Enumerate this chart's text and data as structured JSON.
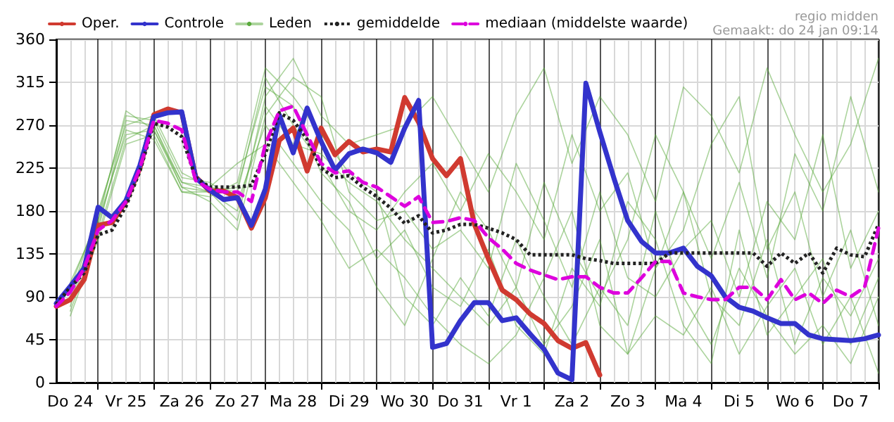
{
  "chart_data": {
    "type": "line",
    "annotations": [
      "regio midden",
      "Gemaakt: do 24 jan 09:14"
    ],
    "categories": [
      null,
      "Do 24",
      null,
      null,
      null,
      "Vr 25",
      null,
      null,
      null,
      "Za 26",
      null,
      null,
      null,
      "Zo 27",
      null,
      null,
      null,
      "Ma 28",
      null,
      null,
      null,
      "Di 29",
      null,
      null,
      null,
      "Wo 30",
      null,
      null,
      null,
      "Do 31",
      null,
      null,
      null,
      "Vr 1",
      null,
      null,
      null,
      "Za 2",
      null,
      null,
      null,
      "Zo 3",
      null,
      null,
      null,
      "Ma 4",
      null,
      null,
      null,
      "Di 5",
      null,
      null,
      null,
      "Wo 6",
      null,
      null,
      null,
      "Do 7",
      null,
      null
    ],
    "ylim": [
      0,
      360
    ],
    "yticks": [
      0,
      45,
      90,
      135,
      180,
      225,
      270,
      315,
      360
    ],
    "grid": true,
    "legend": "top left",
    "marker": "none",
    "series": [
      {
        "name": "Oper.",
        "color": "#d03a30",
        "line_style": "solid",
        "values": [
          80,
          87,
          108,
          165,
          168,
          190,
          225,
          281,
          287,
          283,
          216,
          201,
          201,
          194,
          162,
          194,
          254,
          267,
          222,
          267,
          239,
          253,
          242,
          245,
          242,
          299,
          273,
          235,
          217,
          235,
          166,
          130,
          97,
          87,
          72,
          62,
          44,
          36,
          42,
          8,
          null,
          null,
          null,
          null,
          null,
          null,
          null,
          null,
          null,
          null,
          null,
          null,
          null,
          null,
          null,
          null,
          null,
          null,
          null,
          null
        ]
      },
      {
        "name": "Controle",
        "color": "#3333cc",
        "line_style": "solid",
        "values": [
          83,
          101,
          120,
          184,
          173,
          191,
          228,
          279,
          283,
          284,
          215,
          202,
          192,
          194,
          165,
          203,
          281,
          241,
          288,
          253,
          223,
          240,
          245,
          241,
          231,
          267,
          296,
          37,
          41,
          65,
          84,
          84,
          65,
          68,
          51,
          35,
          10,
          3,
          314,
          263,
          215,
          170,
          148,
          136,
          136,
          141,
          122,
          112,
          90,
          79,
          75,
          68,
          62,
          62,
          50,
          46,
          45,
          44,
          46,
          50
        ]
      },
      {
        "name": "Leden",
        "color": "#5aaa3c",
        "line_style": "solid",
        "values": [
          null,
          85,
          null,
          170,
          null,
          260,
          null,
          265,
          null,
          205,
          null,
          200,
          null,
          180,
          null,
          290,
          null,
          250,
          null,
          240,
          null,
          210,
          null,
          190,
          null,
          150,
          null,
          120,
          null,
          90,
          null,
          60,
          null,
          100,
          null,
          40,
          null,
          80,
          null,
          150,
          null,
          30,
          null,
          120,
          null,
          200,
          null,
          90,
          null,
          60,
          null,
          150,
          null,
          40,
          null,
          110,
          null,
          70,
          null,
          130
        ]
      },
      {
        "color": "#5aaa3c",
        "line_style": "solid",
        "values": [
          null,
          95,
          null,
          160,
          null,
          275,
          null,
          270,
          null,
          210,
          null,
          205,
          null,
          200,
          null,
          320,
          null,
          270,
          null,
          230,
          null,
          180,
          null,
          160,
          null,
          200,
          null,
          230,
          null,
          180,
          null,
          240,
          null,
          200,
          null,
          150,
          null,
          260,
          null,
          180,
          null,
          220,
          null,
          120,
          null,
          160,
          null,
          250,
          null,
          300,
          null,
          140,
          null,
          200,
          null,
          90,
          null,
          160,
          null,
          60
        ]
      },
      {
        "color": "#5aaa3c",
        "line_style": "solid",
        "values": [
          null,
          70,
          null,
          150,
          null,
          250,
          null,
          260,
          null,
          200,
          null,
          195,
          null,
          210,
          null,
          330,
          null,
          300,
          null,
          260,
          null,
          220,
          null,
          200,
          null,
          90,
          null,
          60,
          null,
          110,
          null,
          70,
          null,
          150,
          null,
          90,
          null,
          40,
          null,
          100,
          null,
          60,
          null,
          180,
          null,
          90,
          null,
          40,
          null,
          120,
          null,
          70,
          null,
          30,
          null,
          60,
          null,
          20,
          null,
          90
        ]
      },
      {
        "color": "#5aaa3c",
        "line_style": "solid",
        "values": [
          null,
          100,
          null,
          175,
          null,
          280,
          null,
          275,
          null,
          215,
          null,
          210,
          null,
          190,
          null,
          270,
          null,
          230,
          null,
          190,
          null,
          160,
          null,
          100,
          null,
          60,
          null,
          130,
          null,
          200,
          null,
          160,
          null,
          100,
          null,
          210,
          null,
          140,
          null,
          90,
          null,
          150,
          null,
          260,
          null,
          200,
          null,
          130,
          null,
          210,
          null,
          110,
          null,
          240,
          null,
          180,
          null,
          300,
          null,
          200
        ]
      },
      {
        "color": "#5aaa3c",
        "line_style": "solid",
        "values": [
          null,
          80,
          null,
          165,
          null,
          265,
          null,
          255,
          null,
          200,
          null,
          200,
          null,
          170,
          null,
          300,
          null,
          340,
          null,
          280,
          null,
          250,
          null,
          null,
          null,
          270,
          null,
          300,
          null,
          250,
          null,
          200,
          null,
          280,
          null,
          330,
          null,
          230,
          null,
          300,
          null,
          260,
          null,
          190,
          null,
          310,
          null,
          280,
          null,
          220,
          null,
          330,
          null,
          260,
          null,
          200,
          null,
          250,
          null,
          340
        ]
      },
      {
        "color": "#5aaa3c",
        "line_style": "solid",
        "values": [
          null,
          90,
          null,
          180,
          null,
          270,
          null,
          280,
          null,
          220,
          null,
          205,
          null,
          230,
          null,
          250,
          null,
          210,
          null,
          170,
          null,
          120,
          null,
          140,
          null,
          110,
          null,
          70,
          null,
          40,
          null,
          20,
          null,
          50,
          null,
          110,
          null,
          180,
          null,
          60,
          null,
          30,
          null,
          70,
          null,
          50,
          null,
          100,
          null,
          30,
          null,
          80,
          null,
          120,
          null,
          40,
          null,
          90,
          null,
          10
        ]
      },
      {
        "color": "#5aaa3c",
        "line_style": "solid",
        "values": [
          null,
          75,
          null,
          155,
          null,
          255,
          null,
          270,
          null,
          205,
          null,
          190,
          null,
          160,
          null,
          280,
          null,
          320,
          null,
          300,
          null,
          200,
          null,
          170,
          null,
          180,
          null,
          140,
          null,
          160,
          null,
          120,
          null,
          230,
          null,
          170,
          null,
          100,
          null,
          200,
          null,
          110,
          null,
          90,
          null,
          140,
          null,
          170,
          null,
          90,
          null,
          190,
          null,
          150,
          null,
          260,
          null,
          120,
          null,
          180
        ]
      },
      {
        "color": "#5aaa3c",
        "line_style": "solid",
        "values": [
          null,
          105,
          null,
          170,
          null,
          285,
          null,
          265,
          null,
          210,
          null,
          200,
          null,
          205,
          null,
          310,
          null,
          290,
          null,
          220,
          null,
          190,
          null,
          130,
          null,
          160,
          null,
          100,
          null,
          80,
          null,
          140,
          null,
          60,
          null,
          30,
          null,
          120,
          null,
          80,
          null,
          190,
          null,
          150,
          null,
          60,
          null,
          20,
          null,
          160,
          null,
          50,
          null,
          90,
          null,
          130,
          null,
          40,
          null,
          110
        ]
      },
      {
        "name": "gemiddelde",
        "color": "#222222",
        "line_style": "dotted",
        "values": [
          82,
          100,
          115,
          155,
          160,
          185,
          222,
          272,
          268,
          258,
          215,
          205,
          205,
          205,
          207,
          240,
          283,
          275,
          255,
          225,
          215,
          217,
          205,
          195,
          183,
          167,
          175,
          157,
          160,
          166,
          166,
          162,
          157,
          150,
          134,
          134,
          134,
          134,
          130,
          128,
          125,
          125,
          125,
          125,
          136,
          136,
          136,
          136,
          136,
          136,
          136,
          122,
          136,
          125,
          136,
          115,
          141,
          134,
          132,
          166
        ]
      },
      {
        "name": "mediaan (middelste waarde)",
        "color": "#dd00dd",
        "line_style": "dashed",
        "values": [
          80,
          95,
          120,
          160,
          170,
          190,
          225,
          275,
          272,
          265,
          212,
          203,
          200,
          200,
          190,
          250,
          285,
          290,
          260,
          230,
          220,
          222,
          210,
          205,
          195,
          185,
          195,
          168,
          169,
          173,
          170,
          152,
          140,
          125,
          118,
          113,
          108,
          111,
          111,
          100,
          94,
          94,
          110,
          127,
          127,
          94,
          90,
          87,
          87,
          100,
          100,
          87,
          108,
          87,
          94,
          83,
          97,
          90,
          100,
          162
        ]
      }
    ]
  }
}
